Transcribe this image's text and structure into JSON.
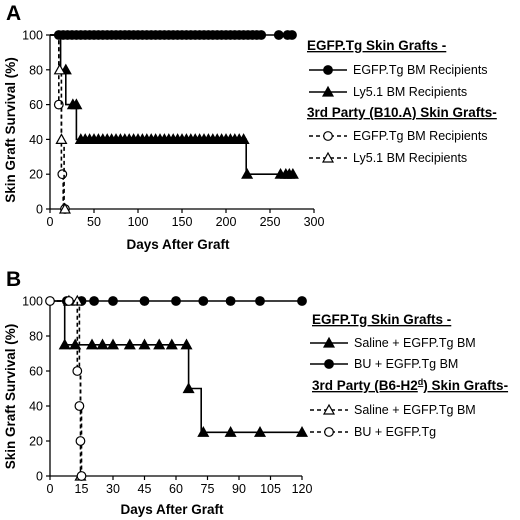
{
  "chart_data": [
    {
      "panel": "A",
      "type": "line",
      "step": true,
      "xlabel": "Days After Graft",
      "ylabel": "Skin Graft Survival (%)",
      "xlim": [
        0,
        300
      ],
      "ylim": [
        0,
        100
      ],
      "xticks": [
        0,
        50,
        100,
        150,
        200,
        250,
        300
      ],
      "yticks": [
        0,
        20,
        40,
        60,
        80,
        100
      ],
      "legend_groups": [
        {
          "heading": "EGFP.Tg Skin Grafts -",
          "series_indices": [
            0,
            1
          ]
        },
        {
          "heading": "3rd Party (B10.A) Skin Grafts-",
          "series_indices": [
            2,
            3
          ]
        }
      ],
      "series": [
        {
          "name": "EGFP.Tg BM Recipients",
          "marker": "circle-filled",
          "line": "solid",
          "color": "#000000",
          "line_x": [
            0,
            278
          ],
          "line_y": [
            100,
            100
          ],
          "markers_x": [
            10,
            15,
            20,
            25,
            30,
            35,
            40,
            45,
            50,
            55,
            60,
            65,
            70,
            75,
            80,
            85,
            90,
            95,
            100,
            105,
            110,
            115,
            120,
            125,
            130,
            135,
            140,
            145,
            150,
            155,
            160,
            165,
            170,
            175,
            180,
            185,
            190,
            195,
            200,
            205,
            210,
            215,
            220,
            225,
            230,
            235,
            240,
            260,
            270,
            275
          ],
          "markers_y": [
            100,
            100,
            100,
            100,
            100,
            100,
            100,
            100,
            100,
            100,
            100,
            100,
            100,
            100,
            100,
            100,
            100,
            100,
            100,
            100,
            100,
            100,
            100,
            100,
            100,
            100,
            100,
            100,
            100,
            100,
            100,
            100,
            100,
            100,
            100,
            100,
            100,
            100,
            100,
            100,
            100,
            100,
            100,
            100,
            100,
            100,
            100,
            100,
            100,
            100
          ]
        },
        {
          "name": "Ly5.1 BM Recipients",
          "marker": "triangle-filled",
          "line": "solid",
          "color": "#000000",
          "line_x": [
            0,
            12,
            12,
            18,
            18,
            30,
            30,
            36,
            36,
            223,
            223,
            278
          ],
          "line_y": [
            100,
            100,
            80,
            80,
            60,
            60,
            40,
            40,
            40,
            40,
            20,
            20
          ],
          "markers_x": [
            18,
            26,
            30,
            35,
            40,
            45,
            50,
            55,
            60,
            65,
            70,
            75,
            80,
            85,
            90,
            95,
            100,
            105,
            110,
            115,
            120,
            125,
            130,
            135,
            140,
            145,
            150,
            155,
            160,
            165,
            170,
            175,
            180,
            185,
            190,
            195,
            200,
            205,
            210,
            215,
            220,
            224,
            262,
            268,
            272,
            276
          ],
          "markers_y": [
            80,
            60,
            60,
            40,
            40,
            40,
            40,
            40,
            40,
            40,
            40,
            40,
            40,
            40,
            40,
            40,
            40,
            40,
            40,
            40,
            40,
            40,
            40,
            40,
            40,
            40,
            40,
            40,
            40,
            40,
            40,
            40,
            40,
            40,
            40,
            40,
            40,
            40,
            40,
            40,
            40,
            20,
            20,
            20,
            20,
            20
          ]
        },
        {
          "name": "EGFP.Tg BM Recipients",
          "marker": "circle-open",
          "line": "dashed",
          "color": "#000000",
          "line_x": [
            0,
            10,
            10,
            13,
            13,
            15,
            15,
            17,
            17
          ],
          "line_y": [
            100,
            100,
            60,
            60,
            20,
            20,
            0,
            0,
            0
          ],
          "markers_x": [
            10,
            14,
            17
          ],
          "markers_y": [
            60,
            20,
            0
          ]
        },
        {
          "name": "Ly5.1 BM Recipients",
          "marker": "triangle-open",
          "line": "dashed",
          "color": "#000000",
          "line_x": [
            0,
            10,
            10,
            13,
            13,
            16,
            16,
            18,
            18
          ],
          "line_y": [
            100,
            100,
            80,
            80,
            40,
            40,
            0,
            0,
            0
          ],
          "markers_x": [
            11,
            13,
            17
          ],
          "markers_y": [
            80,
            40,
            0
          ]
        }
      ]
    },
    {
      "panel": "B",
      "type": "line",
      "step": true,
      "xlabel": "Days After Graft",
      "ylabel": "Skin Graft Survival (%)",
      "xlim": [
        0,
        120
      ],
      "ylim": [
        0,
        100
      ],
      "xticks": [
        0,
        15,
        30,
        45,
        60,
        75,
        90,
        105,
        120
      ],
      "yticks": [
        0,
        20,
        40,
        60,
        80,
        100
      ],
      "legend_groups": [
        {
          "heading": "EGFP.Tg Skin Grafts -",
          "series_indices": [
            0,
            1
          ]
        },
        {
          "heading": "3rd Party (B6-H2",
          "heading_sup": "d",
          "heading_tail": ") Skin Grafts-",
          "series_indices": [
            2,
            3
          ]
        }
      ],
      "series": [
        {
          "name": "Saline + EGFP.Tg BM",
          "marker": "triangle-filled",
          "line": "solid",
          "color": "#000000",
          "line_x": [
            0,
            7,
            7,
            66,
            66,
            72,
            72,
            120
          ],
          "line_y": [
            100,
            100,
            75,
            75,
            50,
            50,
            25,
            25
          ],
          "markers_x": [
            7,
            12,
            20,
            25,
            30,
            38,
            45,
            52,
            58,
            65,
            66,
            73,
            86,
            100,
            120
          ],
          "markers_y": [
            75,
            75,
            75,
            75,
            75,
            75,
            75,
            75,
            75,
            75,
            50,
            25,
            25,
            25,
            25
          ]
        },
        {
          "name": "BU + EGFP.Tg BM",
          "marker": "circle-filled",
          "line": "solid",
          "color": "#000000",
          "line_x": [
            0,
            120
          ],
          "line_y": [
            100,
            100
          ],
          "markers_x": [
            8,
            15,
            21,
            30,
            45,
            60,
            73,
            86,
            100,
            120
          ],
          "markers_y": [
            100,
            100,
            100,
            100,
            100,
            100,
            100,
            100,
            100,
            100
          ]
        },
        {
          "name": "Saline + EGFP.Tg BM",
          "marker": "triangle-open",
          "line": "dashed",
          "color": "#000000",
          "line_x": [
            0,
            14,
            14,
            14.5,
            14.5
          ],
          "line_y": [
            100,
            100,
            60,
            60,
            0
          ],
          "markers_x": [
            9,
            13,
            14.5
          ],
          "markers_y": [
            100,
            100,
            0
          ]
        },
        {
          "name": "BU + EGFP.Tg",
          "marker": "circle-open",
          "line": "dashed",
          "color": "#000000",
          "line_x": [
            0,
            13,
            13,
            14.5,
            14.5,
            15,
            15
          ],
          "line_y": [
            100,
            100,
            60,
            60,
            40,
            40,
            0
          ],
          "markers_x": [
            0,
            9,
            13,
            14,
            14.5,
            15
          ],
          "markers_y": [
            100,
            100,
            60,
            40,
            20,
            0
          ]
        }
      ]
    }
  ]
}
